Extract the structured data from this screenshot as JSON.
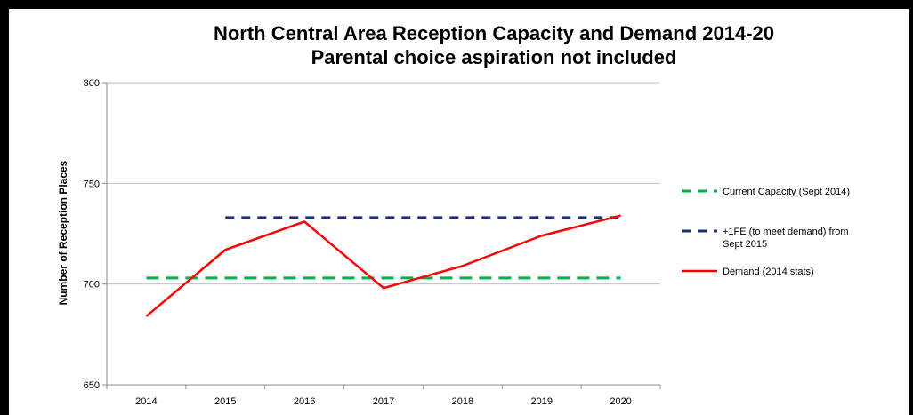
{
  "chart_data": {
    "type": "line",
    "title": "North Central Area Reception Capacity and Demand 2014-20",
    "subtitle": "Parental choice aspiration not included",
    "ylabel": "Number of Reception Places",
    "xlabel": "",
    "categories": [
      "2014",
      "2015",
      "2016",
      "2017",
      "2018",
      "2019",
      "2020"
    ],
    "ylim": [
      650,
      800
    ],
    "yticks": [
      "650",
      "700",
      "750",
      "800"
    ],
    "grid": true,
    "legend_position": "right",
    "series": [
      {
        "name": "Current Capacity (Sept 2014)",
        "legend_lines": [
          "Current Capacity (Sept 2014)"
        ],
        "style": "dashed",
        "color": "#00b050",
        "x": [
          "2014",
          "2015",
          "2016",
          "2017",
          "2018",
          "2019",
          "2020"
        ],
        "values": [
          703,
          703,
          703,
          703,
          703,
          703,
          703
        ]
      },
      {
        "name": "+1FE (to meet demand) from Sept 2015",
        "legend_lines": [
          "+1FE (to meet demand) from",
          "Sept 2015"
        ],
        "style": "dashed",
        "color": "#1f2f7a",
        "x": [
          "2015",
          "2016",
          "2017",
          "2018",
          "2019",
          "2020"
        ],
        "values": [
          733,
          733,
          733,
          733,
          733,
          733
        ]
      },
      {
        "name": "Demand (2014 stats)",
        "legend_lines": [
          "Demand (2014 stats)"
        ],
        "style": "solid",
        "color": "#ff0000",
        "x": [
          "2014",
          "2015",
          "2016",
          "2017",
          "2018",
          "2019",
          "2020"
        ],
        "values": [
          684,
          717,
          731,
          698,
          709,
          724,
          734
        ]
      }
    ]
  }
}
